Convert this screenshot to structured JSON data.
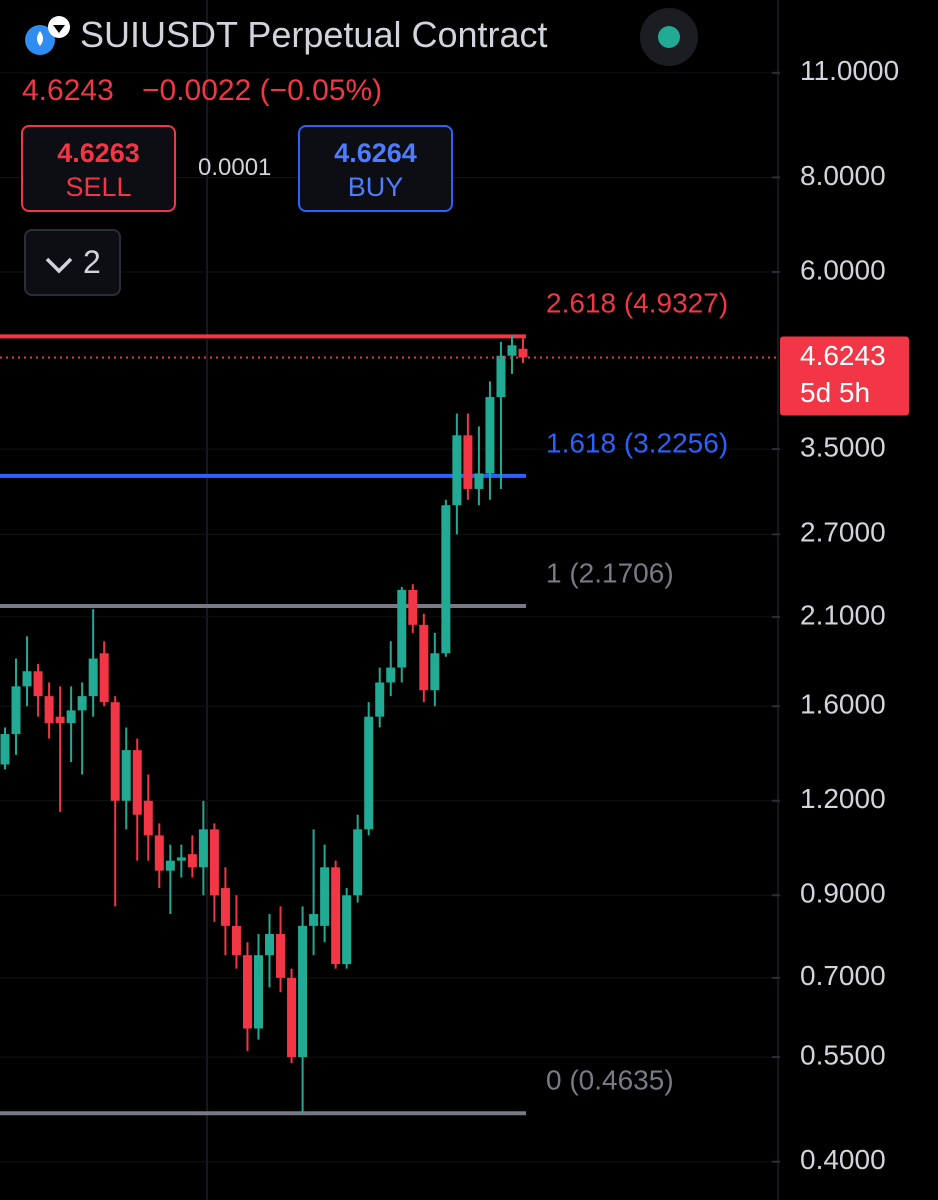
{
  "header": {
    "symbol": "SUIUSDT Perpetual Contract",
    "price": "4.6243",
    "change": "−0.0022 (−0.05%)",
    "sell_price": "4.6263",
    "sell_label": "SELL",
    "spread": "0.0001",
    "buy_price": "4.6264",
    "buy_label": "BUY",
    "indicator_count": "2"
  },
  "chart_data": {
    "type": "candlestick",
    "log_scale": true,
    "grid": true,
    "up_color": "#22ab94",
    "down_color": "#f23645",
    "open": [
      1.34,
      1.47,
      1.7,
      1.78,
      1.65,
      1.55,
      1.52,
      1.58,
      1.65,
      1.88,
      1.62,
      1.2,
      1.4,
      1.2,
      1.08,
      0.97,
      1.0,
      1.02,
      0.98,
      1.1,
      0.92,
      0.82,
      0.75,
      0.6,
      0.75,
      0.8,
      0.7,
      0.55,
      0.82,
      0.82,
      0.98,
      0.73,
      0.9,
      1.1,
      1.55,
      1.72,
      1.8,
      2.28,
      2.05,
      1.68,
      1.88,
      2.95,
      3.65,
      3.1,
      3.25,
      4.1,
      4.65,
      4.75
    ],
    "high": [
      1.5,
      1.85,
      1.98,
      1.82,
      1.72,
      1.7,
      1.7,
      1.72,
      2.15,
      1.95,
      1.65,
      1.5,
      1.45,
      1.3,
      1.12,
      1.05,
      1.05,
      1.08,
      1.2,
      1.12,
      0.98,
      0.9,
      0.78,
      0.8,
      0.85,
      0.87,
      0.72,
      0.87,
      1.1,
      1.05,
      1.0,
      0.92,
      1.15,
      1.62,
      1.8,
      1.95,
      2.3,
      2.32,
      2.12,
      2.0,
      3.0,
      3.9,
      3.9,
      3.75,
      4.3,
      4.85,
      4.95,
      4.9
    ],
    "low": [
      1.32,
      1.38,
      1.6,
      1.55,
      1.45,
      1.16,
      1.35,
      1.3,
      1.55,
      1.6,
      0.87,
      1.1,
      1.0,
      1.0,
      0.92,
      0.85,
      0.95,
      0.95,
      0.9,
      0.83,
      0.75,
      0.72,
      0.56,
      0.58,
      0.68,
      0.67,
      0.54,
      0.4635,
      0.75,
      0.78,
      0.72,
      0.72,
      0.88,
      1.08,
      1.5,
      1.65,
      1.72,
      2.0,
      1.62,
      1.6,
      1.86,
      2.7,
      3.0,
      2.95,
      3.0,
      3.1,
      4.4,
      4.55
    ],
    "close": [
      1.47,
      1.7,
      1.78,
      1.65,
      1.52,
      1.52,
      1.58,
      1.65,
      1.85,
      1.62,
      1.2,
      1.4,
      1.15,
      1.08,
      0.97,
      1.0,
      1.01,
      0.98,
      1.1,
      0.9,
      0.82,
      0.75,
      0.6,
      0.75,
      0.8,
      0.7,
      0.55,
      0.82,
      0.85,
      0.98,
      0.73,
      0.9,
      1.1,
      1.55,
      1.72,
      1.8,
      2.28,
      2.05,
      1.68,
      1.88,
      2.95,
      3.65,
      3.1,
      3.25,
      4.1,
      4.65,
      4.8,
      4.6243
    ],
    "ylim": [
      0.356,
      13.73
    ],
    "yticks": [
      {
        "value": 0.4,
        "label": "0.4000"
      },
      {
        "value": 0.55,
        "label": "0.5500"
      },
      {
        "value": 0.7,
        "label": "0.7000"
      },
      {
        "value": 0.9,
        "label": "0.9000"
      },
      {
        "value": 1.2,
        "label": "1.2000"
      },
      {
        "value": 1.6,
        "label": "1.6000"
      },
      {
        "value": 2.1,
        "label": "2.1000"
      },
      {
        "value": 2.7,
        "label": "2.7000"
      },
      {
        "value": 3.5,
        "label": "3.5000"
      },
      {
        "value": 6,
        "label": "6.0000"
      },
      {
        "value": 8,
        "label": "8.0000"
      },
      {
        "value": 11,
        "label": "11.0000"
      }
    ],
    "fib_levels": [
      {
        "label": "2.618 (4.9327)",
        "value": 4.9327,
        "color": "#f23645"
      },
      {
        "label": "1.618 (3.2256)",
        "value": 3.2256,
        "color": "#2962ff"
      },
      {
        "label": "1 (2.1706)",
        "value": 2.1706,
        "color": "#787b86"
      },
      {
        "label": "0 (0.4635)",
        "value": 0.4635,
        "color": "#787b86"
      }
    ],
    "last_price": {
      "value": 4.6243,
      "countdown": "5d 5h",
      "color": "#f23645"
    }
  }
}
